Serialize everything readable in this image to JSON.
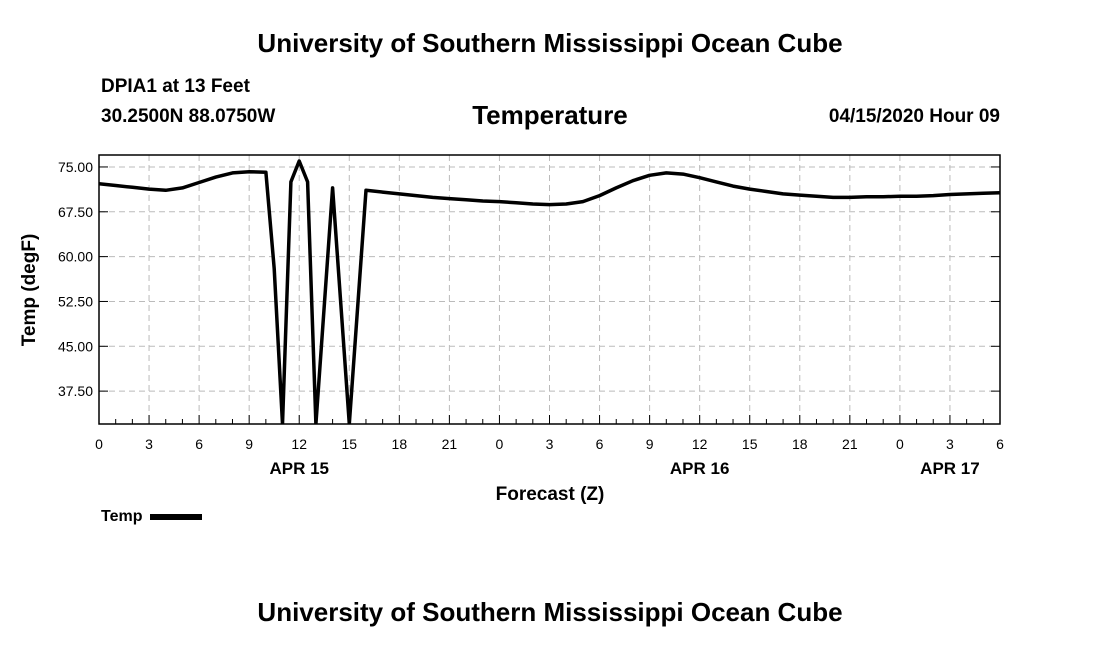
{
  "page": {
    "top_title": "University of Southern Mississippi Ocean Cube",
    "bottom_title": "University of Southern Mississippi Ocean Cube",
    "station": "DPIA1 at 13 Feet",
    "coordinates": "30.2500N 88.0750W",
    "datetime": "04/15/2020 Hour 09"
  },
  "chart_data": {
    "type": "line",
    "title": "Temperature",
    "xlabel": "Forecast (Z)",
    "ylabel": "Temp (degF)",
    "x_unit": "hours",
    "xlim": [
      0,
      54
    ],
    "ylim": [
      32,
      77
    ],
    "x_ticks": [
      0,
      3,
      6,
      9,
      12,
      15,
      18,
      21,
      24,
      27,
      30,
      33,
      36,
      39,
      42,
      45,
      48,
      51,
      54
    ],
    "x_tick_labels": [
      "0",
      "3",
      "6",
      "9",
      "12",
      "15",
      "18",
      "21",
      "0",
      "3",
      "6",
      "9",
      "12",
      "15",
      "18",
      "21",
      "0",
      "3",
      "6"
    ],
    "x_minor_ticks": [
      1,
      2,
      4,
      5,
      7,
      8,
      10,
      11,
      13,
      14,
      16,
      17,
      19,
      20,
      22,
      23,
      25,
      26,
      28,
      29,
      31,
      32,
      34,
      35,
      37,
      38,
      40,
      41,
      43,
      44,
      46,
      47,
      49,
      50,
      52,
      53
    ],
    "date_labels": [
      {
        "x": 12,
        "label": "APR 15"
      },
      {
        "x": 36,
        "label": "APR 16"
      },
      {
        "x": 51,
        "label": "APR 17"
      }
    ],
    "y_ticks": [
      37.5,
      45.0,
      52.5,
      60.0,
      67.5,
      75.0
    ],
    "y_tick_labels": [
      "37.50",
      "45.00",
      "52.50",
      "60.00",
      "67.50",
      "75.00"
    ],
    "grid": true,
    "legend": "bottom-left",
    "series": [
      {
        "name": "Temp",
        "color": "#000000",
        "x": [
          0,
          1,
          2,
          3,
          4,
          5,
          6,
          7,
          8,
          9,
          10,
          10.5,
          11,
          11.5,
          12,
          12.5,
          13,
          14,
          15,
          16,
          17,
          18,
          19,
          20,
          21,
          22,
          23,
          24,
          25,
          26,
          27,
          28,
          29,
          30,
          31,
          32,
          33,
          34,
          35,
          36,
          37,
          38,
          39,
          40,
          41,
          42,
          43,
          44,
          45,
          46,
          47,
          48,
          49,
          50,
          51,
          52,
          53,
          54
        ],
        "values": [
          72.2,
          71.9,
          71.6,
          71.3,
          71.1,
          71.5,
          72.4,
          73.3,
          74.0,
          74.2,
          74.1,
          58.0,
          32.0,
          72.5,
          76.0,
          72.5,
          32.0,
          71.5,
          32.0,
          71.1,
          70.8,
          70.5,
          70.2,
          69.9,
          69.7,
          69.5,
          69.3,
          69.2,
          69.0,
          68.8,
          68.7,
          68.8,
          69.2,
          70.2,
          71.5,
          72.7,
          73.6,
          74.0,
          73.8,
          73.2,
          72.5,
          71.8,
          71.3,
          70.9,
          70.5,
          70.3,
          70.1,
          69.9,
          69.9,
          70.0,
          70.0,
          70.1,
          70.1,
          70.2,
          70.4,
          70.5,
          70.6,
          70.7
        ]
      }
    ]
  }
}
